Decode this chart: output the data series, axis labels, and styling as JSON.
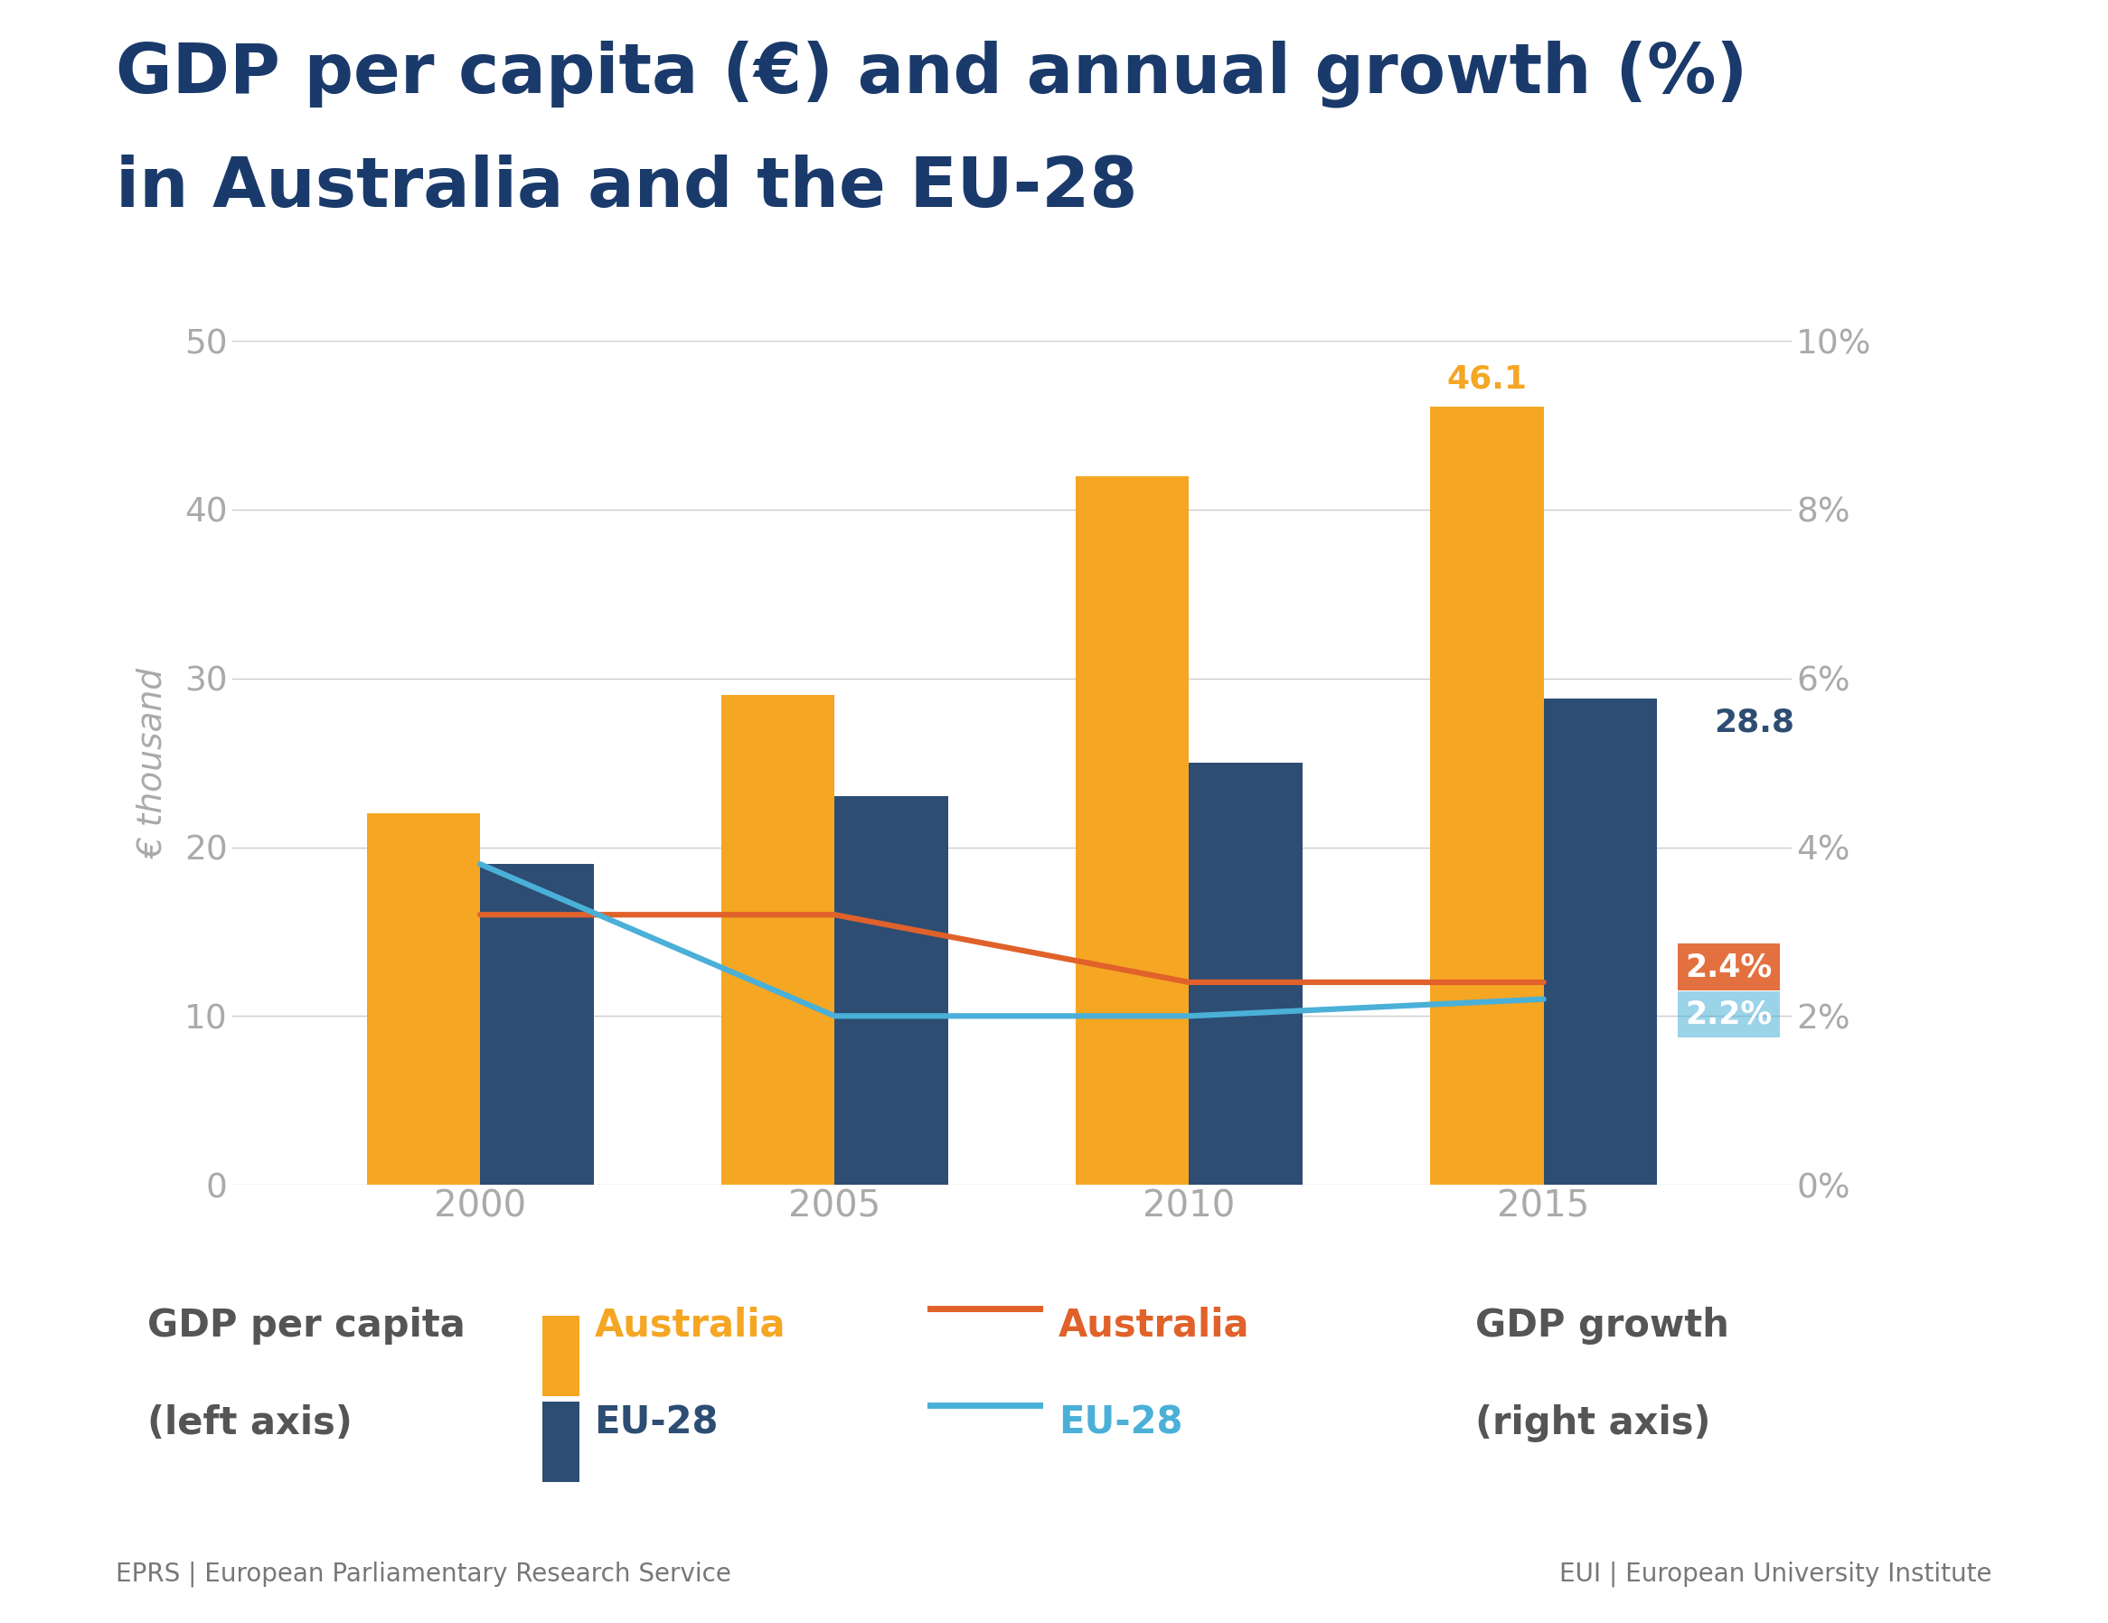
{
  "title_line1": "GDP per capita (€) and annual growth (%)",
  "title_line2": "in Australia and the EU-28",
  "title_color": "#1a3a6b",
  "years": [
    2000,
    2005,
    2010,
    2015
  ],
  "australia_gdp": [
    22.0,
    29.0,
    42.0,
    46.1
  ],
  "eu28_gdp": [
    19.0,
    23.0,
    25.0,
    28.8
  ],
  "australia_growth": [
    3.2,
    3.2,
    2.4,
    2.4
  ],
  "eu28_growth": [
    3.8,
    2.0,
    2.0,
    2.2
  ],
  "australia_bar_color": "#f5a623",
  "eu28_bar_color": "#2d4d73",
  "australia_line_color": "#e0622a",
  "eu28_line_color": "#4ab0d8",
  "left_ylabel": "€ thousand",
  "ylim_left": [
    0,
    50
  ],
  "ylim_right": [
    0,
    10
  ],
  "yticks_left": [
    0,
    10,
    20,
    30,
    40,
    50
  ],
  "yticks_right": [
    0,
    2,
    4,
    6,
    8,
    10
  ],
  "ytick_labels_right": [
    "0%",
    "2%",
    "4%",
    "6%",
    "8%",
    "10%"
  ],
  "annotation_australia_growth": "2.4%",
  "annotation_eu28_growth": "2.2%",
  "annotation_australia_gdp": "46.1",
  "annotation_eu28_gdp": "28.8",
  "footer_left": "EPRS | European Parliamentary Research Service",
  "footer_right": "EUI | European University Institute",
  "footer_color": "#777777",
  "background_color": "#ffffff",
  "grid_color": "#cccccc",
  "tick_label_color": "#aaaaaa",
  "legend_text_color": "#555555"
}
